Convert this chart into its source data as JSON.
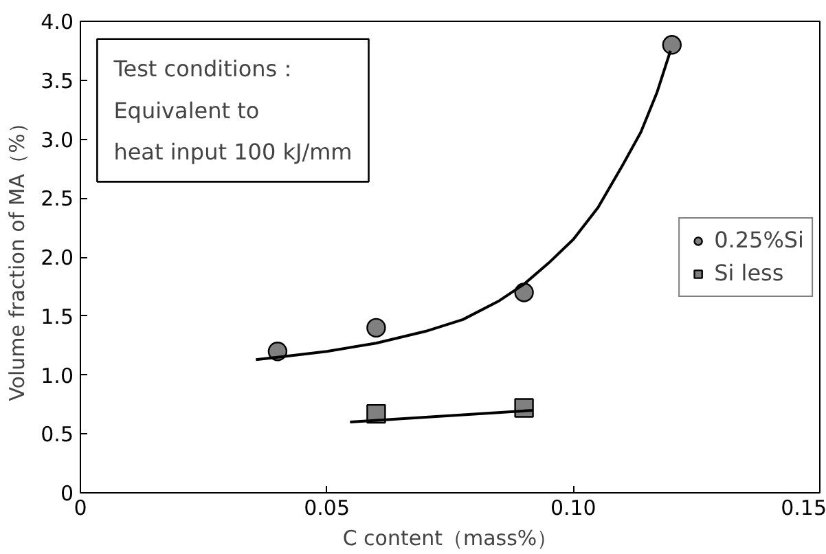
{
  "chart_data": {
    "type": "scatter",
    "xlabel": "C content（mass%）",
    "ylabel": "Volume fraction of MA（%）",
    "xlim": [
      0,
      0.15
    ],
    "ylim": [
      0,
      4.0
    ],
    "xticks": [
      0,
      0.05,
      {
        "value": 0.1,
        "label": "0.10"
      },
      0.15
    ],
    "yticks": [
      0,
      0.5,
      {
        "value": 1,
        "label": "1.0"
      },
      1.5,
      {
        "value": 2,
        "label": "2.0"
      },
      2.5,
      {
        "value": 3,
        "label": "3.0"
      },
      3.5,
      {
        "value": 4,
        "label": "4.0"
      }
    ],
    "series": [
      {
        "name": "0.25%Si",
        "color": "#808080",
        "marker": "circle",
        "x": [
          0.04,
          0.06,
          0.09,
          0.12
        ],
        "values": [
          1.2,
          1.4,
          1.7,
          3.8
        ]
      },
      {
        "name": "Si less",
        "color": "#808080",
        "marker": "square",
        "x": [
          0.06,
          0.09
        ],
        "values": [
          0.67,
          0.72
        ]
      },
      {
        "type": "line",
        "color": "#000000",
        "x": [
          0.0356,
          0.04,
          0.05,
          0.06,
          0.07,
          0.0776,
          0.085,
          0.09,
          0.095,
          0.1,
          0.105,
          0.11,
          0.1137,
          0.117,
          0.1197
        ],
        "values": [
          1.13,
          1.15,
          1.2,
          1.27,
          1.37,
          1.47,
          1.63,
          1.77,
          1.95,
          2.15,
          2.42,
          2.78,
          3.06,
          3.4,
          3.75
        ]
      },
      {
        "type": "line",
        "color": "#000000",
        "x": [
          0.0547,
          0.0918
        ],
        "values": [
          0.6,
          0.7
        ]
      }
    ],
    "annotations": [
      "Test conditions：",
      "Equivalent to",
      "heat input 100 kJ/mm"
    ],
    "legend": "right",
    "grid": false
  }
}
